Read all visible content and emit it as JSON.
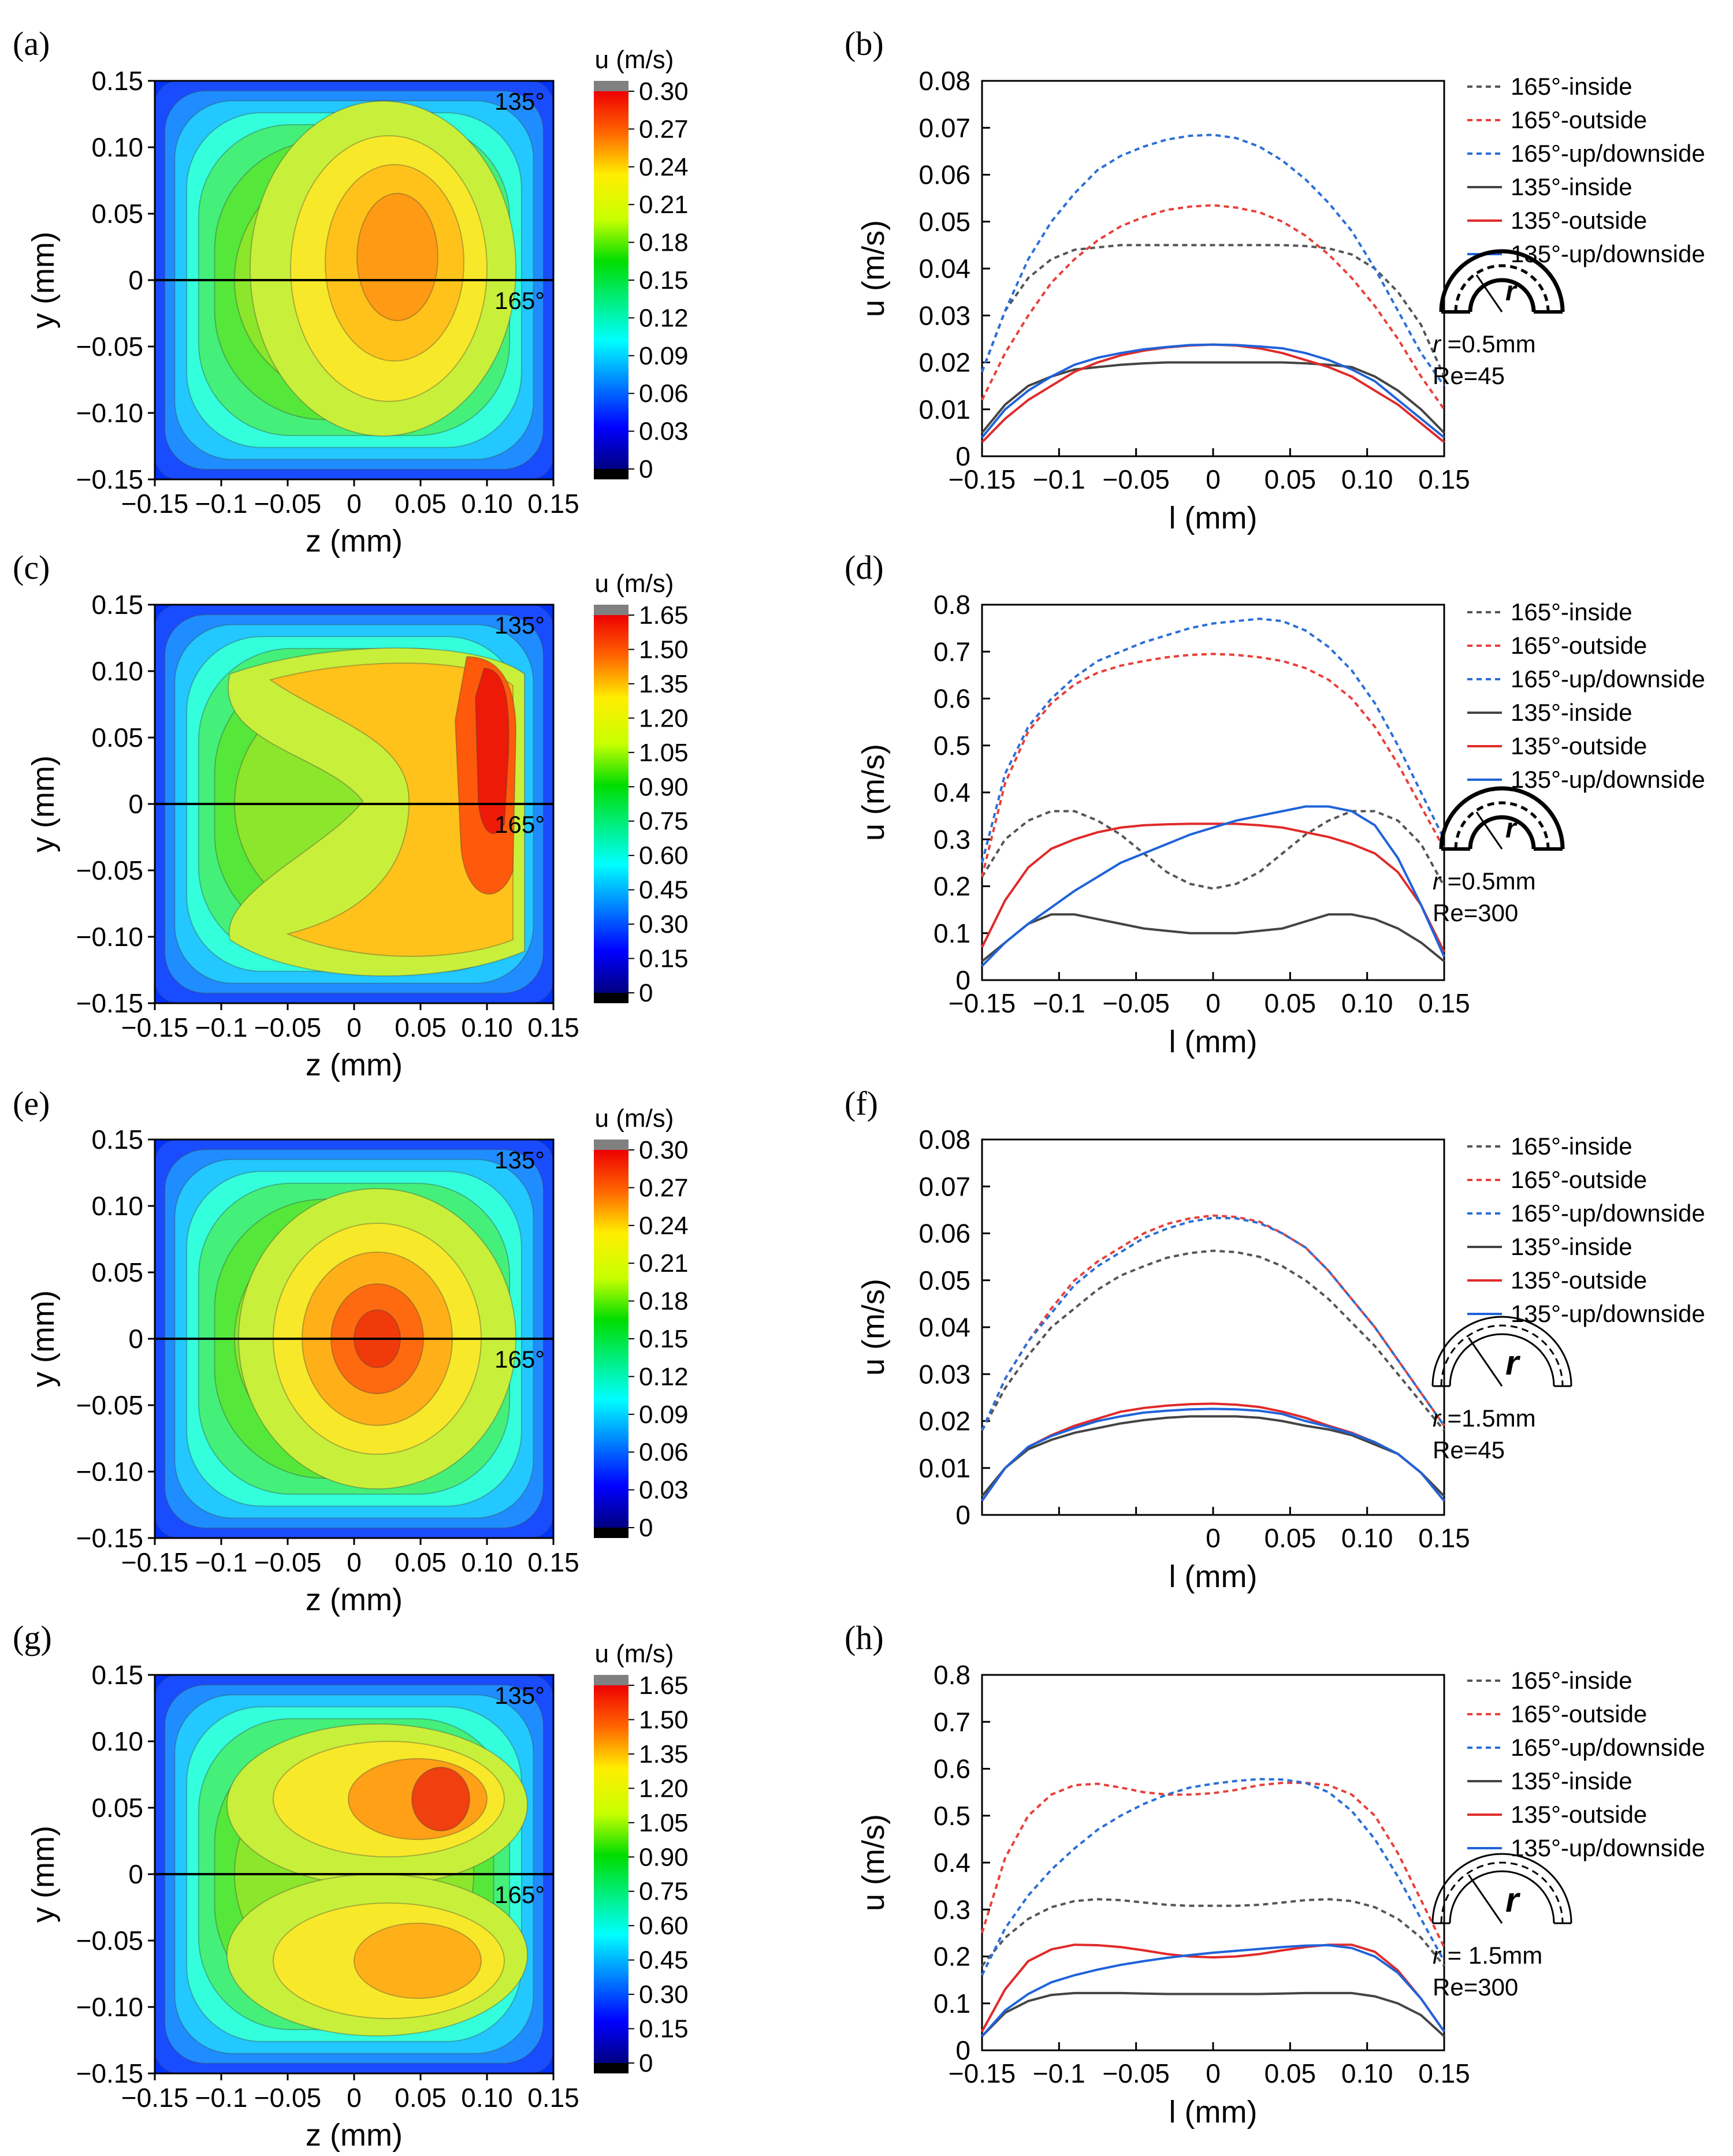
{
  "colors": {
    "c165_inside": "#555555",
    "c165_outside": "#e8403a",
    "c165_up": "#2a6fd6",
    "c135_inside": "#444444",
    "c135_outside": "#e02a2a",
    "c135_up": "#1f63d9"
  },
  "panels": [
    {
      "label": "(a)",
      "type": "heatmap",
      "colorbar_title": "u (m/s)",
      "colorbar_ticks": [
        "0.30",
        "0.27",
        "0.24",
        "0.21",
        "0.18",
        "0.15",
        "0.12",
        "0.09",
        "0.06",
        "0.03",
        "0"
      ],
      "vmax": 0.3,
      "x_ticks": [
        "−0.15",
        "−0.1",
        "−0.05",
        "0",
        "0.05",
        "0.10",
        "0.15"
      ],
      "y_ticks": [
        "0.15",
        "0.10",
        "0.05",
        "0",
        "−0.05",
        "−0.10",
        "−0.15"
      ],
      "xlabel": "z (mm)",
      "ylabel": "y (mm)",
      "annot_top": "135°",
      "annot_mid": "165°"
    },
    {
      "label": "(c)",
      "type": "heatmap",
      "colorbar_title": "u (m/s)",
      "colorbar_ticks": [
        "1.65",
        "1.50",
        "1.35",
        "1.20",
        "1.05",
        "0.90",
        "0.75",
        "0.60",
        "0.45",
        "0.30",
        "0.15",
        "0"
      ],
      "vmax": 1.65,
      "x_ticks": [
        "−0.15",
        "−0.1",
        "−0.05",
        "0",
        "0.05",
        "0.10",
        "0.15"
      ],
      "y_ticks": [
        "0.15",
        "0.10",
        "0.05",
        "0",
        "−0.05",
        "−0.10",
        "−0.15"
      ],
      "xlabel": "z (mm)",
      "ylabel": "y (mm)",
      "annot_top": "135°",
      "annot_mid": "165°"
    },
    {
      "label": "(e)",
      "type": "heatmap",
      "colorbar_title": "u (m/s)",
      "colorbar_ticks": [
        "0.30",
        "0.27",
        "0.24",
        "0.21",
        "0.18",
        "0.15",
        "0.12",
        "0.09",
        "0.06",
        "0.03",
        "0"
      ],
      "vmax": 0.3,
      "x_ticks": [
        "−0.15",
        "−0.1",
        "−0.05",
        "0",
        "0.05",
        "0.10",
        "0.15"
      ],
      "y_ticks": [
        "0.15",
        "0.10",
        "0.05",
        "0",
        "−0.05",
        "−0.10",
        "−0.15"
      ],
      "xlabel": "z (mm)",
      "ylabel": "y (mm)",
      "annot_top": "135°",
      "annot_mid": "165°"
    },
    {
      "label": "(g)",
      "type": "heatmap",
      "colorbar_title": "u (m/s)",
      "colorbar_ticks": [
        "1.65",
        "1.50",
        "1.35",
        "1.20",
        "1.05",
        "0.90",
        "0.75",
        "0.60",
        "0.45",
        "0.30",
        "0.15",
        "0"
      ],
      "vmax": 1.65,
      "x_ticks": [
        "−0.15",
        "−0.1",
        "−0.05",
        "0",
        "0.05",
        "0.10",
        "0.15"
      ],
      "y_ticks": [
        "0.15",
        "0.10",
        "0.05",
        "0",
        "−0.05",
        "−0.10",
        "−0.15"
      ],
      "xlabel": "z (mm)",
      "ylabel": "y (mm)",
      "annot_top": "135°",
      "annot_mid": "165°"
    }
  ],
  "chart_data": [
    {
      "type": "line",
      "label": "(b)",
      "xlabel": "l (mm)",
      "ylabel": "u (m/s)",
      "xlim": [
        -0.15,
        0.15
      ],
      "ylim": [
        0,
        0.08
      ],
      "x_ticks": [
        "−0.15",
        "−0.1",
        "−0.05",
        "0",
        "0.05",
        "0.10",
        "0.15"
      ],
      "y_ticks": [
        "0",
        "0.01",
        "0.02",
        "0.03",
        "0.04",
        "0.05",
        "0.06",
        "0.07",
        "0.08"
      ],
      "note_r": "r",
      "note_r_value": " =0.5mm",
      "note_re": "Re=45",
      "x": [
        -0.15,
        -0.135,
        -0.12,
        -0.105,
        -0.09,
        -0.075,
        -0.06,
        -0.045,
        -0.03,
        -0.015,
        0,
        0.015,
        0.03,
        0.045,
        0.06,
        0.075,
        0.09,
        0.105,
        0.12,
        0.135,
        0.15
      ],
      "series": [
        {
          "name": "165°-inside",
          "dash": true,
          "color": "c165_inside",
          "values": [
            0.018,
            0.031,
            0.038,
            0.042,
            0.044,
            0.0445,
            0.045,
            0.045,
            0.045,
            0.045,
            0.045,
            0.045,
            0.045,
            0.045,
            0.0448,
            0.0443,
            0.043,
            0.04,
            0.035,
            0.028,
            0.017
          ]
        },
        {
          "name": "165°-outside",
          "dash": true,
          "color": "c165_outside",
          "values": [
            0.012,
            0.022,
            0.03,
            0.037,
            0.042,
            0.046,
            0.049,
            0.051,
            0.0525,
            0.0532,
            0.0535,
            0.053,
            0.052,
            0.05,
            0.047,
            0.043,
            0.038,
            0.032,
            0.025,
            0.017,
            0.01
          ]
        },
        {
          "name": "165°-up/downside",
          "dash": true,
          "color": "c165_up",
          "values": [
            0.018,
            0.031,
            0.042,
            0.05,
            0.056,
            0.061,
            0.064,
            0.066,
            0.0675,
            0.0683,
            0.0685,
            0.0678,
            0.066,
            0.063,
            0.059,
            0.054,
            0.048,
            0.04,
            0.031,
            0.022,
            0.015
          ]
        },
        {
          "name": "135°-inside",
          "dash": false,
          "color": "c135_inside",
          "values": [
            0.005,
            0.011,
            0.015,
            0.017,
            0.0185,
            0.019,
            0.0195,
            0.0198,
            0.02,
            0.02,
            0.02,
            0.02,
            0.02,
            0.02,
            0.0198,
            0.0195,
            0.019,
            0.017,
            0.014,
            0.01,
            0.005
          ]
        },
        {
          "name": "135°-outside",
          "dash": false,
          "color": "c135_outside",
          "values": [
            0.003,
            0.008,
            0.012,
            0.015,
            0.018,
            0.02,
            0.0215,
            0.0225,
            0.0232,
            0.0236,
            0.0238,
            0.0236,
            0.023,
            0.022,
            0.0205,
            0.019,
            0.017,
            0.014,
            0.011,
            0.007,
            0.003
          ]
        },
        {
          "name": "135°-up/downside",
          "dash": false,
          "color": "c135_up",
          "values": [
            0.004,
            0.01,
            0.014,
            0.017,
            0.0195,
            0.021,
            0.022,
            0.0228,
            0.0233,
            0.0237,
            0.0238,
            0.0237,
            0.0234,
            0.023,
            0.022,
            0.0205,
            0.0185,
            0.016,
            0.012,
            0.008,
            0.004
          ]
        }
      ]
    },
    {
      "type": "line",
      "label": "(d)",
      "xlabel": "l (mm)",
      "ylabel": "u (m/s)",
      "xlim": [
        -0.15,
        0.15
      ],
      "ylim": [
        0,
        0.8
      ],
      "x_ticks": [
        "−0.15",
        "−0.1",
        "−0.05",
        "0",
        "0.05",
        "0.10",
        "0.15"
      ],
      "y_ticks": [
        "0",
        "0.1",
        "0.2",
        "0.3",
        "0.4",
        "0.5",
        "0.6",
        "0.7",
        "0.8"
      ],
      "note_r": "r",
      "note_r_value": " =0.5mm",
      "note_re": "Re=300",
      "x": [
        -0.15,
        -0.135,
        -0.12,
        -0.105,
        -0.09,
        -0.075,
        -0.06,
        -0.045,
        -0.03,
        -0.015,
        0,
        0.015,
        0.03,
        0.045,
        0.06,
        0.075,
        0.09,
        0.105,
        0.12,
        0.135,
        0.15
      ],
      "series": [
        {
          "name": "165°-inside",
          "dash": true,
          "color": "c165_inside",
          "values": [
            0.22,
            0.3,
            0.34,
            0.36,
            0.36,
            0.34,
            0.31,
            0.27,
            0.23,
            0.205,
            0.195,
            0.205,
            0.23,
            0.27,
            0.31,
            0.34,
            0.36,
            0.36,
            0.34,
            0.29,
            0.2
          ]
        },
        {
          "name": "165°-outside",
          "dash": true,
          "color": "c165_outside",
          "values": [
            0.22,
            0.42,
            0.53,
            0.59,
            0.63,
            0.655,
            0.67,
            0.68,
            0.688,
            0.693,
            0.695,
            0.693,
            0.688,
            0.68,
            0.665,
            0.64,
            0.6,
            0.54,
            0.46,
            0.37,
            0.28
          ]
        },
        {
          "name": "165°-up/downside",
          "dash": true,
          "color": "c165_up",
          "values": [
            0.25,
            0.44,
            0.54,
            0.6,
            0.645,
            0.68,
            0.7,
            0.72,
            0.735,
            0.75,
            0.76,
            0.765,
            0.77,
            0.765,
            0.745,
            0.71,
            0.66,
            0.59,
            0.5,
            0.4,
            0.3
          ]
        },
        {
          "name": "135°-inside",
          "dash": false,
          "color": "c135_inside",
          "values": [
            0.04,
            0.08,
            0.12,
            0.14,
            0.14,
            0.13,
            0.12,
            0.11,
            0.105,
            0.1,
            0.1,
            0.1,
            0.105,
            0.11,
            0.125,
            0.14,
            0.14,
            0.13,
            0.11,
            0.08,
            0.04
          ]
        },
        {
          "name": "135°-outside",
          "dash": false,
          "color": "c135_outside",
          "values": [
            0.07,
            0.17,
            0.24,
            0.28,
            0.3,
            0.315,
            0.325,
            0.33,
            0.332,
            0.333,
            0.333,
            0.333,
            0.33,
            0.325,
            0.315,
            0.305,
            0.29,
            0.27,
            0.23,
            0.16,
            0.06
          ]
        },
        {
          "name": "135°-up/downside",
          "dash": false,
          "color": "c135_up",
          "values": [
            0.03,
            0.08,
            0.12,
            0.155,
            0.19,
            0.22,
            0.25,
            0.27,
            0.29,
            0.31,
            0.325,
            0.34,
            0.35,
            0.36,
            0.37,
            0.37,
            0.36,
            0.33,
            0.26,
            0.16,
            0.05
          ]
        }
      ]
    },
    {
      "type": "line",
      "label": "(f)",
      "xlabel": "l (mm)",
      "ylabel": "u (m/s)",
      "xlim": [
        -0.15,
        0.15
      ],
      "ylim": [
        0,
        0.08
      ],
      "x_ticks": [
        "",
        "",
        "",
        "0",
        "0.05",
        "0.10",
        "0.15"
      ],
      "y_ticks": [
        "0",
        "0.01",
        "0.02",
        "0.03",
        "0.04",
        "0.05",
        "0.06",
        "0.07",
        "0.08"
      ],
      "note_r": "r",
      "note_r_value": " =1.5mm",
      "note_re": "Re=45",
      "x": [
        -0.15,
        -0.135,
        -0.12,
        -0.105,
        -0.09,
        -0.075,
        -0.06,
        -0.045,
        -0.03,
        -0.015,
        0,
        0.015,
        0.03,
        0.045,
        0.06,
        0.075,
        0.09,
        0.105,
        0.12,
        0.135,
        0.15
      ],
      "series": [
        {
          "name": "165°-inside",
          "dash": true,
          "color": "c165_inside",
          "values": [
            0.018,
            0.027,
            0.034,
            0.04,
            0.044,
            0.048,
            0.051,
            0.053,
            0.0548,
            0.0558,
            0.0563,
            0.056,
            0.055,
            0.053,
            0.05,
            0.046,
            0.041,
            0.036,
            0.03,
            0.024,
            0.018
          ]
        },
        {
          "name": "165°-outside",
          "dash": true,
          "color": "c165_outside",
          "values": [
            0.018,
            0.029,
            0.037,
            0.044,
            0.05,
            0.054,
            0.057,
            0.06,
            0.062,
            0.0632,
            0.0638,
            0.0635,
            0.0625,
            0.06,
            0.057,
            0.052,
            0.046,
            0.04,
            0.033,
            0.026,
            0.019
          ]
        },
        {
          "name": "165°-up/downside",
          "dash": true,
          "color": "c165_up",
          "values": [
            0.018,
            0.029,
            0.037,
            0.043,
            0.049,
            0.053,
            0.056,
            0.059,
            0.061,
            0.0625,
            0.0633,
            0.0632,
            0.0622,
            0.06,
            0.057,
            0.052,
            0.046,
            0.04,
            0.033,
            0.026,
            0.019
          ]
        },
        {
          "name": "135°-inside",
          "dash": false,
          "color": "c135_inside",
          "values": [
            0.004,
            0.01,
            0.014,
            0.016,
            0.0175,
            0.0185,
            0.0195,
            0.0202,
            0.0207,
            0.021,
            0.021,
            0.021,
            0.0207,
            0.02,
            0.019,
            0.0182,
            0.017,
            0.015,
            0.013,
            0.009,
            0.004
          ]
        },
        {
          "name": "135°-outside",
          "dash": false,
          "color": "c135_outside",
          "values": [
            0.003,
            0.01,
            0.0145,
            0.017,
            0.019,
            0.0205,
            0.022,
            0.0228,
            0.0233,
            0.0236,
            0.0237,
            0.0235,
            0.023,
            0.022,
            0.0207,
            0.019,
            0.0175,
            0.0155,
            0.013,
            0.009,
            0.003
          ]
        },
        {
          "name": "135°-up/downside",
          "dash": false,
          "color": "c135_up",
          "values": [
            0.003,
            0.01,
            0.0145,
            0.0168,
            0.0185,
            0.02,
            0.021,
            0.0218,
            0.0222,
            0.0225,
            0.0226,
            0.0225,
            0.0222,
            0.0215,
            0.02,
            0.0188,
            0.0173,
            0.0155,
            0.013,
            0.009,
            0.003
          ]
        }
      ]
    },
    {
      "type": "line",
      "label": "(h)",
      "xlabel": "l (mm)",
      "ylabel": "u (m/s)",
      "xlim": [
        -0.15,
        0.15
      ],
      "ylim": [
        0,
        0.8
      ],
      "x_ticks": [
        "−0.15",
        "−0.1",
        "−0.05",
        "0",
        "0.05",
        "0.10",
        "0.15"
      ],
      "y_ticks": [
        "0",
        "0.1",
        "0.2",
        "0.3",
        "0.4",
        "0.5",
        "0.6",
        "0.7",
        "0.8"
      ],
      "note_r": "r",
      "note_r_value": " = 1.5mm",
      "note_re": "Re=300",
      "x": [
        -0.15,
        -0.135,
        -0.12,
        -0.105,
        -0.09,
        -0.075,
        -0.06,
        -0.045,
        -0.03,
        -0.015,
        0,
        0.015,
        0.03,
        0.045,
        0.06,
        0.075,
        0.09,
        0.105,
        0.12,
        0.135,
        0.15
      ],
      "series": [
        {
          "name": "165°-inside",
          "dash": true,
          "color": "c165_inside",
          "values": [
            0.18,
            0.24,
            0.28,
            0.305,
            0.318,
            0.322,
            0.32,
            0.315,
            0.31,
            0.308,
            0.308,
            0.308,
            0.31,
            0.315,
            0.32,
            0.322,
            0.318,
            0.305,
            0.28,
            0.24,
            0.18
          ]
        },
        {
          "name": "165°-outside",
          "dash": true,
          "color": "c165_outside",
          "values": [
            0.25,
            0.41,
            0.5,
            0.545,
            0.565,
            0.568,
            0.56,
            0.55,
            0.545,
            0.545,
            0.548,
            0.555,
            0.565,
            0.57,
            0.57,
            0.565,
            0.545,
            0.5,
            0.42,
            0.32,
            0.22
          ]
        },
        {
          "name": "165°-up/downside",
          "dash": true,
          "color": "c165_up",
          "values": [
            0.16,
            0.26,
            0.33,
            0.385,
            0.43,
            0.47,
            0.5,
            0.525,
            0.545,
            0.56,
            0.568,
            0.574,
            0.578,
            0.577,
            0.57,
            0.55,
            0.51,
            0.45,
            0.37,
            0.28,
            0.19
          ]
        },
        {
          "name": "135°-inside",
          "dash": false,
          "color": "c135_inside",
          "values": [
            0.03,
            0.08,
            0.105,
            0.118,
            0.122,
            0.122,
            0.122,
            0.121,
            0.12,
            0.12,
            0.12,
            0.12,
            0.12,
            0.121,
            0.122,
            0.122,
            0.122,
            0.115,
            0.1,
            0.075,
            0.03
          ]
        },
        {
          "name": "135°-outside",
          "dash": false,
          "color": "c135_outside",
          "values": [
            0.04,
            0.13,
            0.19,
            0.215,
            0.225,
            0.224,
            0.22,
            0.213,
            0.205,
            0.2,
            0.198,
            0.2,
            0.205,
            0.213,
            0.22,
            0.225,
            0.225,
            0.21,
            0.17,
            0.11,
            0.04
          ]
        },
        {
          "name": "135°-up/downside",
          "dash": false,
          "color": "c135_up",
          "values": [
            0.03,
            0.085,
            0.12,
            0.145,
            0.16,
            0.172,
            0.182,
            0.19,
            0.197,
            0.203,
            0.208,
            0.212,
            0.216,
            0.22,
            0.223,
            0.224,
            0.218,
            0.2,
            0.165,
            0.11,
            0.04
          ]
        }
      ]
    }
  ]
}
